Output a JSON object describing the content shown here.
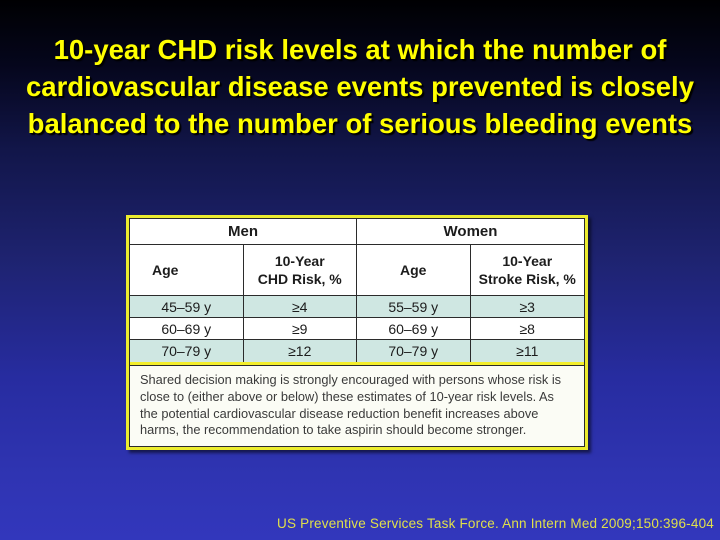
{
  "title": {
    "lines": [
      "10-year CHD risk levels at which the number of",
      "cardiovascular disease events prevented is closely",
      "balanced to the number of serious bleeding events"
    ]
  },
  "risk_table": {
    "groups": {
      "men": "Men",
      "women": "Women"
    },
    "columns": {
      "men_age": "Age",
      "men_risk_line1": "10-Year",
      "men_risk_line2": "CHD Risk, %",
      "women_age": "Age",
      "women_risk_line1": "10-Year",
      "women_risk_line2": "Stroke Risk, %"
    },
    "rows": [
      {
        "men_age": "45–59 y",
        "men_risk": "≥4",
        "women_age": "55–59 y",
        "women_risk": "≥3"
      },
      {
        "men_age": "60–69 y",
        "men_risk": "≥9",
        "women_age": "60–69 y",
        "women_risk": "≥8"
      },
      {
        "men_age": "70–79 y",
        "men_risk": "≥12",
        "women_age": "70–79 y",
        "women_risk": "≥11"
      }
    ],
    "note": "Shared decision making is strongly encouraged with persons whose risk is close to (either above or below) these estimates of 10-year risk levels. As the potential cardiovascular disease reduction benefit increases above harms, the recommendation to take aspirin should become stronger."
  },
  "footer": {
    "citation": "US Preventive Services Task Force. Ann Intern Med 2009;150:396-404"
  },
  "colors": {
    "background_top": "#000002",
    "background_bottom": "#3237bc",
    "title_text": "#ffff00",
    "table_border_yellow": "#ecec2e",
    "row_highlight_teal": "#cfe7e2",
    "note_background": "#fbfcf5",
    "citation_text": "#e0e04a"
  }
}
